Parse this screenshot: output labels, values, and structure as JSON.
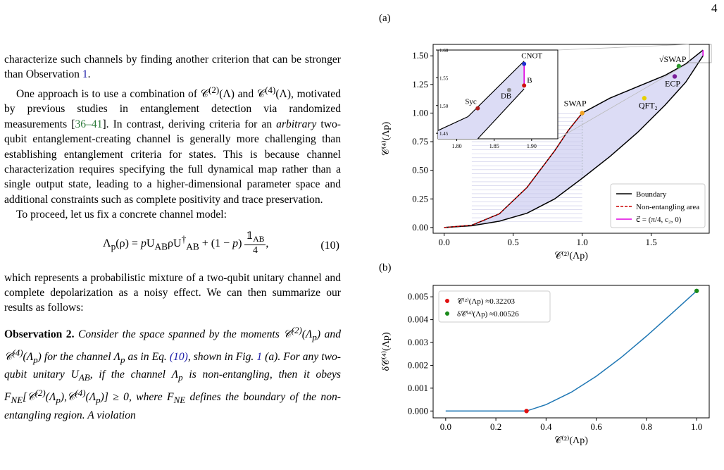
{
  "page_number": "4",
  "text": {
    "p1": "characterize such channels by finding another criterion that can be stronger than Observation 1.",
    "p1_ref": "1",
    "p2": "One approach is to use a combination of 𝒞⁽²⁾(Λ) and 𝒞⁽⁴⁾(Λ), motivated by previous studies in entanglement detection via randomized measurements [36–41]. In contrast, deriving criteria for an arbitrary two-qubit entanglement-creating channel is generally more challenging than establishing entanglement criteria for states. This is because channel characterization requires specifying the full dynamical map rather than a single output state, leading to a higher-dimensional parameter space and additional constraints such as complete positivity and trace preservation.",
    "p3": "To proceed, let us fix a concrete channel model:",
    "eq_lhs": "Λp(ρ) = pUABρU†AB + (1 − p)",
    "eq_frac_num": "𝟙AB",
    "eq_frac_den": "4",
    "eq_num": "(10)",
    "p4": "which represents a probabilistic mixture of a two-qubit unitary channel and complete depolarization as a noisy effect. We can then summarize our results as follows:",
    "obs_title": "Observation 2.",
    "obs_body": "Consider the space spanned by the moments 𝒞⁽²⁾(Λp) and 𝒞⁽⁴⁾(Λp) for the channel Λp as in Eq. (10), shown in Fig. 1 (a). For any two-qubit unitary UAB, if the channel Λp is non-entangling, then it obeys FNE[𝒞⁽²⁾(Λp),𝒞⁽⁴⁾(Λp)] ≥ 0, where FNE defines the boundary of the non-entangling region. A violation"
  },
  "figure": {
    "panel_a_label": "(a)",
    "panel_b_label": "(b)",
    "colors": {
      "boundary": "#000000",
      "nonent": "#cc0000",
      "vec": "#e000e0",
      "fill": "#dcdcf5",
      "curve_b": "#1f77b4"
    },
    "chart_data": [
      {
        "type": "line",
        "panel": "a",
        "xlabel": "𝒞⁽²⁾(Λp)",
        "ylabel": "𝒞⁽⁴⁾(Λp)",
        "xlim": [
          -0.08,
          1.92
        ],
        "ylim": [
          -0.05,
          1.6
        ],
        "xticks": [
          0.0,
          0.5,
          1.0,
          1.5
        ],
        "yticks": [
          0.0,
          0.25,
          0.5,
          0.75,
          1.0,
          1.25,
          1.5
        ],
        "legend": {
          "position": "bottom-right",
          "entries": [
            "Boundary",
            "Non-entangling area",
            "c⃗ = (π/4, c₂, 0)"
          ]
        },
        "upper_boundary": [
          [
            0,
            0
          ],
          [
            0.2,
            0.02
          ],
          [
            0.4,
            0.12
          ],
          [
            0.6,
            0.35
          ],
          [
            0.8,
            0.67
          ],
          [
            0.9,
            0.85
          ],
          [
            1.0,
            1.0
          ],
          [
            1.2,
            1.13
          ],
          [
            1.4,
            1.23
          ],
          [
            1.6,
            1.33
          ],
          [
            1.75,
            1.43
          ],
          [
            1.875,
            1.55
          ]
        ],
        "lower_boundary": [
          [
            0,
            0
          ],
          [
            0.2,
            0.015
          ],
          [
            0.4,
            0.055
          ],
          [
            0.6,
            0.125
          ],
          [
            0.8,
            0.25
          ],
          [
            1.0,
            0.43
          ],
          [
            1.2,
            0.62
          ],
          [
            1.4,
            0.83
          ],
          [
            1.6,
            1.07
          ],
          [
            1.75,
            1.27
          ],
          [
            1.875,
            1.5
          ]
        ],
        "nonentangling": [
          [
            0,
            0
          ],
          [
            0.2,
            0.02
          ],
          [
            0.4,
            0.12
          ],
          [
            0.6,
            0.35
          ],
          [
            0.8,
            0.67
          ],
          [
            0.9,
            0.85
          ],
          [
            1.0,
            1.0
          ]
        ],
        "points": [
          {
            "label": "SWAP",
            "x": 1.0,
            "y": 1.0,
            "color": "#f0a020"
          },
          {
            "label": "QFT₂",
            "x": 1.45,
            "y": 1.13,
            "color": "#e6d000"
          },
          {
            "label": "ECP",
            "x": 1.67,
            "y": 1.32,
            "color": "#7a1f9a"
          },
          {
            "label": "√SWAP",
            "x": 1.7,
            "y": 1.41,
            "color": "#2c9a2c"
          }
        ],
        "inset": {
          "xlim": [
            1.775,
            1.935
          ],
          "ylim": [
            1.44,
            1.6
          ],
          "xticks": [
            1.8,
            1.85,
            1.9
          ],
          "yticks": [
            1.45,
            1.5,
            1.55,
            1.6
          ],
          "points": [
            {
              "label": "CNOT",
              "x": 1.89,
              "y": 1.575,
              "color": "#1f2fd0"
            },
            {
              "label": "B",
              "x": 1.89,
              "y": 1.536,
              "color": "#d01010"
            },
            {
              "label": "DB",
              "x": 1.87,
              "y": 1.528,
              "color": "#888888"
            },
            {
              "label": "Syc",
              "x": 1.828,
              "y": 1.495,
              "color": "#b02020"
            }
          ]
        }
      },
      {
        "type": "line",
        "panel": "b",
        "xlabel": "𝒞⁽²⁾(Λp)",
        "ylabel": "δ𝒞⁽⁴⁾(Λp)",
        "xlim": [
          -0.05,
          1.05
        ],
        "ylim": [
          -0.0003,
          0.0055
        ],
        "xticks": [
          0.0,
          0.2,
          0.4,
          0.6,
          0.8,
          1.0
        ],
        "yticks": [
          0.0,
          0.001,
          0.002,
          0.003,
          0.004,
          0.005
        ],
        "legend": {
          "position": "top-left",
          "entries": [
            "𝒞⁽²⁾(Λp) ≈0.32203",
            "δ𝒞⁽⁴⁾(Λp) ≈0.00526"
          ]
        },
        "series": [
          {
            "x": [
              0,
              0.1,
              0.2,
              0.3,
              0.32203,
              0.4,
              0.5,
              0.6,
              0.7,
              0.8,
              0.9,
              1.0
            ],
            "y": [
              0,
              0,
              0,
              0,
              0,
              0.00028,
              0.00082,
              0.00152,
              0.00235,
              0.00328,
              0.00426,
              0.00526
            ]
          }
        ],
        "points": [
          {
            "label": "𝒞⁽²⁾(Λp) ≈0.32203",
            "x": 0.32203,
            "y": 0,
            "color": "#e01010"
          },
          {
            "label": "δ𝒞⁽⁴⁾(Λp) ≈0.00526",
            "x": 1.0,
            "y": 0.00526,
            "color": "#1a8a1a"
          }
        ]
      }
    ]
  }
}
